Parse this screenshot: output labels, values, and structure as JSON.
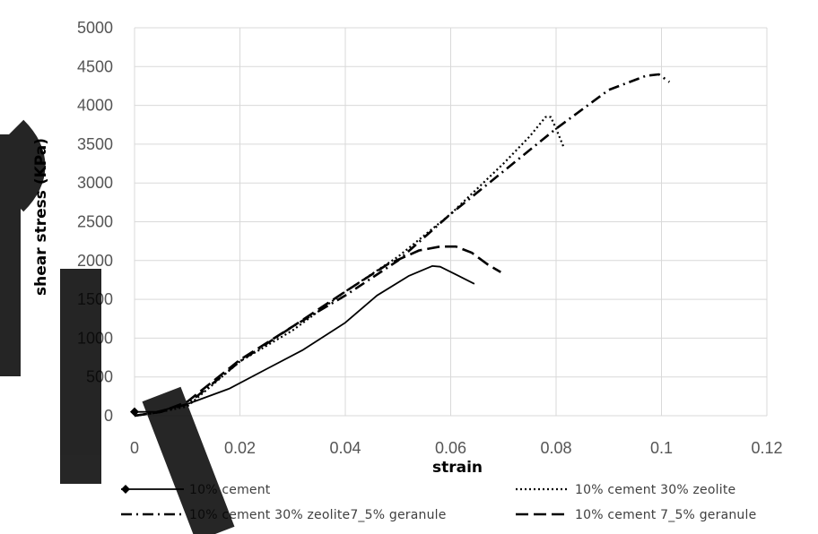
{
  "chart_data": {
    "type": "line",
    "title": "",
    "xlabel": "strain",
    "ylabel": "shear stress (KPa)",
    "xlim": [
      0,
      0.12
    ],
    "ylim": [
      0,
      5000
    ],
    "x_ticks": [
      "0",
      "0.02",
      "0.04",
      "0.06",
      "0.08",
      "0.1",
      "0.12"
    ],
    "y_ticks": [
      "0",
      "500",
      "1000",
      "1500",
      "2000",
      "2500",
      "3000",
      "3500",
      "4000",
      "4500",
      "5000"
    ],
    "grid": true,
    "legend_position": "bottom",
    "series": [
      {
        "name": "10% cement",
        "style": "solid",
        "x": [
          0,
          0.004,
          0.01,
          0.018,
          0.025,
          0.032,
          0.04,
          0.046,
          0.052,
          0.0565,
          0.058,
          0.061,
          0.0645
        ],
        "y": [
          50,
          50,
          150,
          350,
          600,
          850,
          1200,
          1550,
          1800,
          1930,
          1920,
          1820,
          1700
        ]
      },
      {
        "name": "10% cement 30% zeolite",
        "style": "dotted",
        "x": [
          0,
          0.005,
          0.01,
          0.02,
          0.03,
          0.04,
          0.05,
          0.06,
          0.07,
          0.075,
          0.078,
          0.079,
          0.08,
          0.0815
        ],
        "y": [
          0,
          50,
          120,
          700,
          1100,
          1600,
          2050,
          2600,
          3250,
          3600,
          3850,
          3850,
          3700,
          3450
        ]
      },
      {
        "name": "10% cement 30% zeolite7_5% geranule",
        "style": "dash-dot",
        "x": [
          0,
          0.005,
          0.01,
          0.02,
          0.03,
          0.04,
          0.05,
          0.06,
          0.07,
          0.08,
          0.09,
          0.097,
          0.0995,
          0.1015
        ],
        "y": [
          0,
          50,
          150,
          700,
          1150,
          1550,
          2000,
          2600,
          3150,
          3700,
          4200,
          4380,
          4400,
          4300
        ]
      },
      {
        "name": "10% cement 7_5% geranule",
        "style": "dashed",
        "x": [
          0,
          0.005,
          0.01,
          0.02,
          0.03,
          0.04,
          0.048,
          0.054,
          0.058,
          0.061,
          0.064,
          0.067,
          0.0695
        ],
        "y": [
          0,
          50,
          180,
          720,
          1150,
          1600,
          1950,
          2130,
          2180,
          2180,
          2100,
          1950,
          1850
        ]
      }
    ]
  },
  "colors": {
    "line": "#000000",
    "grid": "#d9d9d9",
    "tick_text": "#555555"
  }
}
